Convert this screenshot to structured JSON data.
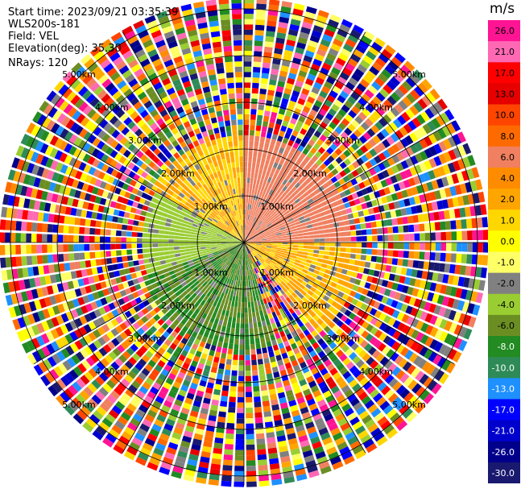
{
  "header": {
    "start_time": "Start time: 2023/09/21 03:35:39",
    "instrument": "WLS200s-181",
    "field": "Field: VEL",
    "elevation": "Elevation(deg): 35.30",
    "nrays": "NRays: 120"
  },
  "chart_data": {
    "type": "heatmap",
    "projection": "polar-ppi",
    "field": "VEL",
    "units": "m/s",
    "elevation_deg": 35.3,
    "n_rays": 120,
    "max_range_km": 5.2,
    "range_rings_km": [
      1,
      2,
      3,
      4,
      5
    ],
    "range_labels": [
      {
        "text": "1.00km",
        "az": 315
      },
      {
        "text": "1.00km",
        "az": 45
      },
      {
        "text": "1.00km",
        "az": 135
      },
      {
        "text": "1.00km",
        "az": 225
      },
      {
        "text": "2.00km",
        "az": 315
      },
      {
        "text": "2.00km",
        "az": 45
      },
      {
        "text": "2.00km",
        "az": 135
      },
      {
        "text": "2.00km",
        "az": 225
      },
      {
        "text": "3.00km",
        "az": 315
      },
      {
        "text": "3.00km",
        "az": 45
      },
      {
        "text": "3.00km",
        "az": 135
      },
      {
        "text": "3.00km",
        "az": 225
      },
      {
        "text": "4.00km",
        "az": 315
      },
      {
        "text": "4.00km",
        "az": 45
      },
      {
        "text": "4.00km",
        "az": 135
      },
      {
        "text": "4.00km",
        "az": 225
      },
      {
        "text": "5.00km",
        "az": 315
      },
      {
        "text": "5.00km",
        "az": 45
      },
      {
        "text": "5.00km",
        "az": 135
      },
      {
        "text": "5.00km",
        "az": 225
      }
    ],
    "sectors": [
      {
        "az_from": 90,
        "az_to": 140,
        "value": 2.0,
        "range_km": 2.6
      },
      {
        "az_from": 0,
        "az_to": 90,
        "value": 7.0,
        "range_km": 2.3
      },
      {
        "az_from": 300,
        "az_to": 360,
        "value": 2.0,
        "range_km": 2.4
      },
      {
        "az_from": 250,
        "az_to": 300,
        "value": -3.0,
        "range_km": 2.2
      },
      {
        "az_from": 160,
        "az_to": 250,
        "value": -6.0,
        "range_km": 2.3
      }
    ],
    "colorbar": {
      "tick_labels": [
        "26.0",
        "21.0",
        "17.0",
        "13.0",
        "10.0",
        "8.0",
        "6.0",
        "4.0",
        "2.0",
        "1.0",
        "0.0",
        "-1.0",
        "-2.0",
        "-4.0",
        "-6.0",
        "-8.0",
        "-10.0",
        "-13.0",
        "-17.0",
        "-21.0",
        "-26.0",
        "-30.0"
      ],
      "colors": [
        "#ff1493",
        "#ff69b4",
        "#ff0000",
        "#e60000",
        "#ff4500",
        "#ff6a00",
        "#f08060",
        "#ff8c00",
        "#ffa500",
        "#ffd700",
        "#ffff00",
        "#ffff66",
        "#808080",
        "#9acd32",
        "#6b8e23",
        "#228b22",
        "#2e8b57",
        "#1e90ff",
        "#0000ff",
        "#0000cd",
        "#00008b",
        "#191970"
      ]
    }
  }
}
